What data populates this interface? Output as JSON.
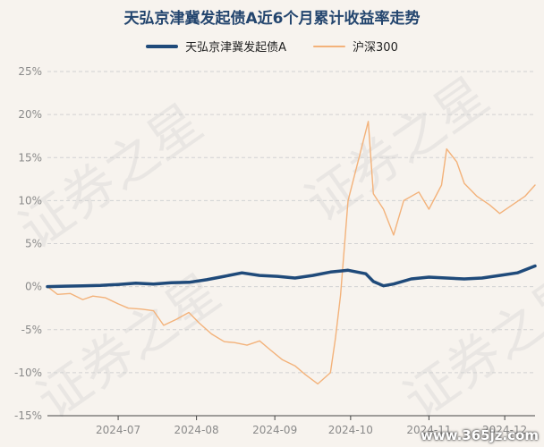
{
  "chart_data": {
    "type": "line",
    "title": "天弘京津冀发起债A近6个月累计收益率走势",
    "xlabel": "",
    "ylabel": "",
    "x_ticks": [
      "2024-07",
      "2024-08",
      "2024-09",
      "2024-10",
      "2024-11",
      "2024-12"
    ],
    "y_ticks": [
      "25%",
      "20%",
      "15%",
      "10%",
      "5%",
      "0%",
      "-5%",
      "-10%",
      "-15%"
    ],
    "ylim": [
      -15,
      25
    ],
    "xlim": [
      "2024-06-03",
      "2024-12-13"
    ],
    "grid": "horizontal dashed",
    "legend_position": "top",
    "series": [
      {
        "name": "天弘京津冀发起债A",
        "color": "#1f4a7a",
        "points": [
          [
            "2024-06-03",
            0.0
          ],
          [
            "2024-06-10",
            0.05
          ],
          [
            "2024-06-17",
            0.1
          ],
          [
            "2024-06-24",
            0.15
          ],
          [
            "2024-07-01",
            0.25
          ],
          [
            "2024-07-08",
            0.4
          ],
          [
            "2024-07-15",
            0.3
          ],
          [
            "2024-07-22",
            0.45
          ],
          [
            "2024-07-29",
            0.5
          ],
          [
            "2024-08-05",
            0.8
          ],
          [
            "2024-08-12",
            1.2
          ],
          [
            "2024-08-19",
            1.6
          ],
          [
            "2024-08-26",
            1.3
          ],
          [
            "2024-09-02",
            1.2
          ],
          [
            "2024-09-09",
            1.0
          ],
          [
            "2024-09-16",
            1.3
          ],
          [
            "2024-09-23",
            1.7
          ],
          [
            "2024-09-30",
            1.9
          ],
          [
            "2024-10-07",
            1.5
          ],
          [
            "2024-10-10",
            0.6
          ],
          [
            "2024-10-14",
            0.1
          ],
          [
            "2024-10-18",
            0.3
          ],
          [
            "2024-10-25",
            0.9
          ],
          [
            "2024-11-01",
            1.1
          ],
          [
            "2024-11-08",
            1.0
          ],
          [
            "2024-11-15",
            0.9
          ],
          [
            "2024-11-22",
            1.0
          ],
          [
            "2024-11-29",
            1.3
          ],
          [
            "2024-12-06",
            1.6
          ],
          [
            "2024-12-13",
            2.4
          ]
        ]
      },
      {
        "name": "沪深300",
        "color": "#f3b27a",
        "points": [
          [
            "2024-06-03",
            0.0
          ],
          [
            "2024-06-07",
            -0.9
          ],
          [
            "2024-06-12",
            -0.8
          ],
          [
            "2024-06-17",
            -1.5
          ],
          [
            "2024-06-21",
            -1.1
          ],
          [
            "2024-06-26",
            -1.3
          ],
          [
            "2024-07-01",
            -2.0
          ],
          [
            "2024-07-05",
            -2.5
          ],
          [
            "2024-07-10",
            -2.6
          ],
          [
            "2024-07-15",
            -2.8
          ],
          [
            "2024-07-19",
            -4.5
          ],
          [
            "2024-07-24",
            -3.8
          ],
          [
            "2024-07-29",
            -3.0
          ],
          [
            "2024-08-02",
            -4.2
          ],
          [
            "2024-08-07",
            -5.5
          ],
          [
            "2024-08-12",
            -6.4
          ],
          [
            "2024-08-16",
            -6.5
          ],
          [
            "2024-08-21",
            -6.8
          ],
          [
            "2024-08-26",
            -6.3
          ],
          [
            "2024-08-30",
            -7.3
          ],
          [
            "2024-09-04",
            -8.5
          ],
          [
            "2024-09-09",
            -9.2
          ],
          [
            "2024-09-13",
            -10.2
          ],
          [
            "2024-09-18",
            -11.3
          ],
          [
            "2024-09-23",
            -10.0
          ],
          [
            "2024-09-25",
            -6.0
          ],
          [
            "2024-09-27",
            -1.0
          ],
          [
            "2024-09-30",
            10.0
          ],
          [
            "2024-10-08",
            19.2
          ],
          [
            "2024-10-10",
            10.8
          ],
          [
            "2024-10-14",
            9.0
          ],
          [
            "2024-10-18",
            6.0
          ],
          [
            "2024-10-22",
            10.0
          ],
          [
            "2024-10-28",
            11.0
          ],
          [
            "2024-11-01",
            9.0
          ],
          [
            "2024-11-06",
            11.8
          ],
          [
            "2024-11-08",
            16.0
          ],
          [
            "2024-11-12",
            14.5
          ],
          [
            "2024-11-15",
            12.0
          ],
          [
            "2024-11-20",
            10.5
          ],
          [
            "2024-11-25",
            9.5
          ],
          [
            "2024-11-29",
            8.5
          ],
          [
            "2024-12-04",
            9.5
          ],
          [
            "2024-12-09",
            10.5
          ],
          [
            "2024-12-13",
            11.8
          ]
        ]
      }
    ]
  },
  "watermark_text": "证券之星",
  "site_label": "www.365jz.com"
}
